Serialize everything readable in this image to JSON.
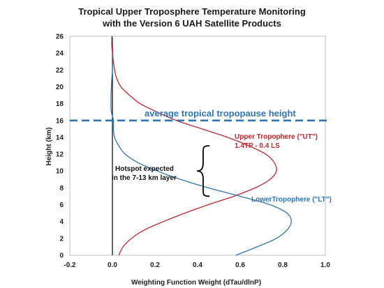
{
  "chart_data": {
    "type": "line",
    "title_line1": "Tropical Upper Troposphere Temperature Monitoring",
    "title_line2": "with the Version 6 UAH Satellite Products",
    "xlabel": "Weighting Function Weight (dTau/dlnP)",
    "ylabel": "Height (km)",
    "xlim": [
      -0.2,
      1.0
    ],
    "ylim": [
      0,
      26
    ],
    "xticks": [
      "-0.2",
      "0.0",
      "0.2",
      "0.4",
      "0.6",
      "0.8",
      "1.0"
    ],
    "yticks": [
      "0",
      "2",
      "4",
      "6",
      "8",
      "10",
      "12",
      "14",
      "16",
      "18",
      "20",
      "22",
      "24",
      "26"
    ],
    "grid": false,
    "series": [
      {
        "name": "Upper Tropophere (\"UT\")",
        "color": "#c0282d",
        "x": [
          0.03,
          0.05,
          0.09,
          0.15,
          0.24,
          0.34,
          0.45,
          0.57,
          0.67,
          0.74,
          0.77,
          0.76,
          0.72,
          0.64,
          0.54,
          0.42,
          0.3,
          0.21,
          0.13,
          0.08,
          0.04,
          0.02,
          0.01,
          0.005,
          0.0,
          -0.003,
          -0.003,
          0.0,
          0.0
        ],
        "y": [
          0,
          1,
          2,
          3,
          4,
          5,
          6,
          7,
          8,
          9,
          10,
          11,
          12,
          13,
          14,
          15,
          16,
          17,
          18,
          19,
          20,
          21,
          22,
          23,
          24,
          25,
          26,
          26.5,
          26.5
        ]
      },
      {
        "name": "LowerTropophere (\"LT\")",
        "color": "#2e75b6",
        "x": [
          0.58,
          0.68,
          0.77,
          0.82,
          0.84,
          0.82,
          0.74,
          0.6,
          0.45,
          0.32,
          0.21,
          0.12,
          0.06,
          0.03,
          0.01,
          0.005,
          0.005,
          -0.005,
          -0.007,
          -0.005,
          0.0,
          0.002,
          0.0
        ],
        "y": [
          0,
          1,
          2,
          3,
          4,
          5,
          6,
          7,
          8,
          9,
          10,
          11,
          12,
          13,
          14,
          15,
          16,
          17,
          18,
          20,
          22,
          24,
          26
        ]
      }
    ],
    "tropopause": {
      "label": "average tropical tropopause height",
      "y": 16,
      "color": "#2e75b6"
    },
    "annotations": {
      "ut_label_line1": "Upper Tropophere (\"UT\")",
      "ut_label_line2": "1.4TP - 0.4 LS",
      "lt_label": "LowerTropophere (\"LT\")",
      "hotspot_line1": "Hotspot expected",
      "hotspot_line2": "in the 7-13 km layer",
      "hotspot_range": [
        7,
        13
      ]
    },
    "colors": {
      "ut": "#c0282d",
      "lt": "#2e75b6",
      "zero_line": "#000000",
      "axis": "#bfbfbf"
    }
  }
}
